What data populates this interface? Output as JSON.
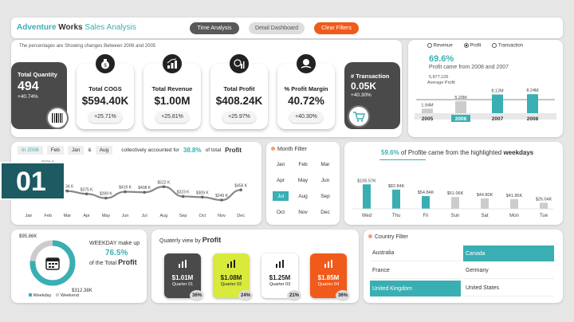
{
  "header": {
    "title_a": "Adventure",
    "title_b": "Works",
    "title_c": "Sales Analysis",
    "subtitle": "The percentages are Showing changes Between 2006 and 2005",
    "buttons": [
      "Time Analysis",
      "Detail Dashboard",
      "Clear Filters"
    ]
  },
  "kpis": {
    "quantity": {
      "title": "Total Quantity",
      "value": "494",
      "pct": "+40.74%"
    },
    "cogs": {
      "title": "Total COGS",
      "value": "$594.40K",
      "pct": "+25.71%"
    },
    "revenue": {
      "title": "Total Revenue",
      "value": "$1.00M",
      "pct": "+25.81%"
    },
    "profit": {
      "title": "Total Profit",
      "value": "$408.24K",
      "pct": "+25.97%"
    },
    "margin": {
      "title": "% Profit Margin",
      "value": "40.72%",
      "pct": "+40.30%"
    },
    "transaction": {
      "title": "# Transaction",
      "value": "0.05K",
      "pct": "+40.30%"
    }
  },
  "yearly": {
    "radios": [
      "Revenue",
      "Profit",
      "Transaction"
    ],
    "selected_radio": "Profit",
    "headline_pct": "69.6%",
    "headline_text": "Profit came from 2008  and  2007",
    "avg_value": "5,877,105",
    "avg_label": "Average Profit",
    "years": [
      "2005",
      "2006",
      "2007",
      "2008"
    ],
    "selected_year": "2006",
    "values": [
      1.94,
      5.2,
      8.12,
      8.24
    ],
    "value_labels": [
      "1.94M",
      "5.20M",
      "8.12M",
      "8.24M"
    ],
    "avg_m": 5.877
  },
  "monthly": {
    "filter_tags": [
      "In 2006",
      "Feb",
      "Jan",
      "&",
      "Aug"
    ],
    "sentence_a": "collectively accounted for",
    "pct": "38.8%",
    "sentence_b": "of total",
    "sentence_c": "Profit",
    "months": [
      "Jan",
      "Feb",
      "Mar",
      "Apr",
      "May",
      "Jun",
      "Jul",
      "Aug",
      "Sep",
      "Oct",
      "Nov",
      "Dec"
    ],
    "values": [
      656,
      929,
      434,
      375,
      289,
      419,
      408,
      522,
      323,
      309,
      249,
      456
    ],
    "labels": [
      "",
      "$929 K",
      "$434 K",
      "$375 K",
      "$289 K",
      "$419 K",
      "$408 K",
      "$522 K",
      "$323 K",
      "$309 K",
      "$249 K",
      "$456 K"
    ]
  },
  "month_filter": {
    "title": "Month Filter",
    "months": [
      "Jan",
      "Feb",
      "Mar",
      "Apr",
      "May",
      "Jun",
      "Jul",
      "Aug",
      "Sep",
      "Oct",
      "Nov",
      "Dec"
    ],
    "selected": "Jul"
  },
  "weekdays": {
    "pct": "59.6%",
    "text_a": "of Profite came from the highlighted",
    "text_b": "weekdays",
    "days": [
      "Wed",
      "Thu",
      "Fri",
      "Sun",
      "Sat",
      "Mon",
      "Tue"
    ],
    "values": [
      105.57,
      82.84,
      54.84,
      51.06,
      44.8,
      41.85,
      26.04
    ],
    "labels": [
      "$105.57K",
      "$82.84K",
      "$54.84K",
      "$51.06K",
      "$44.80K",
      "$41.85K",
      "$26.04K"
    ],
    "highlighted": [
      true,
      true,
      true,
      false,
      false,
      false,
      false
    ]
  },
  "weekday_share": {
    "top_value": "$95.86K",
    "bottom_value": "$312.38K",
    "text_a": "WEEKDAY make up",
    "pct": "76.5%",
    "text_b": "of the Total",
    "text_c": "Profit",
    "legend": [
      "Weekday",
      "Weekend"
    ],
    "weekday_fraction": 0.765
  },
  "quarterly": {
    "title_a": "Quaterly view by",
    "title_b": "Profit",
    "quarters": [
      {
        "value": "$1.01M",
        "label": "Quarter 01",
        "pct": "36%"
      },
      {
        "value": "$1.08M",
        "label": "Quarter 02",
        "pct": "24%"
      },
      {
        "value": "$1.25M",
        "label": "Quarter 03",
        "pct": "21%"
      },
      {
        "value": "$1.85M",
        "label": "Quarter 04",
        "pct": "36%"
      }
    ]
  },
  "country": {
    "title": "Country Filter",
    "items": [
      "Australia",
      "Canada",
      "France",
      "Germany",
      "United Kingdom",
      "United States"
    ],
    "selected": [
      "Canada",
      "United Kingdom"
    ]
  },
  "overlay": {
    "number": "01"
  },
  "colors": {
    "teal": "#3aafb3",
    "dark": "#4a4a4a",
    "orange": "#f05a1a",
    "yellow": "#d8ea3a"
  }
}
